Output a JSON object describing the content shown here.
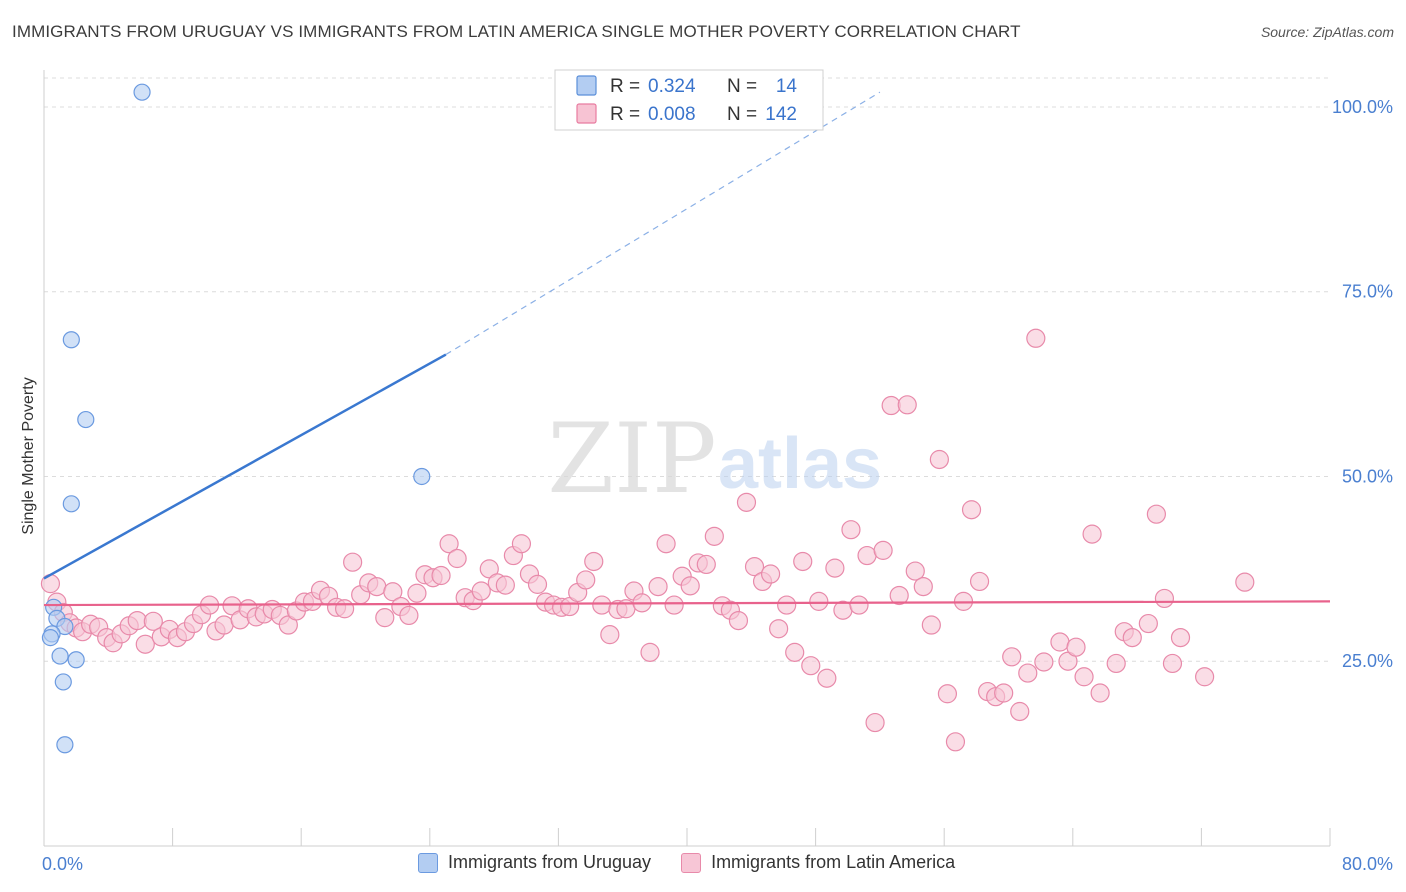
{
  "header": {
    "title": "IMMIGRANTS FROM URUGUAY VS IMMIGRANTS FROM LATIN AMERICA SINGLE MOTHER POVERTY CORRELATION CHART",
    "source": "Source: ZipAtlas.com"
  },
  "watermark": {
    "zip": "ZIP",
    "atlas": "atlas"
  },
  "stats_box": {
    "rows": [
      {
        "r_label": "R =",
        "r_value": "0.324",
        "n_label": "N =",
        "n_value": "14",
        "color": "#5b8fd9",
        "fill": "#b3cdf2"
      },
      {
        "r_label": "R =",
        "r_value": "0.008",
        "n_label": "N =",
        "n_value": "142",
        "color": "#e87ca0",
        "fill": "#f7c3d3"
      }
    ]
  },
  "legend": {
    "items": [
      {
        "label": "Immigrants from Uruguay",
        "fill": "#b3cdf2",
        "stroke": "#6b9ae0"
      },
      {
        "label": "Immigrants from Latin America",
        "fill": "#f7c6d6",
        "stroke": "#e88aaa"
      }
    ]
  },
  "chart_data": {
    "type": "scatter",
    "title": "IMMIGRANTS FROM URUGUAY VS IMMIGRANTS FROM LATIN AMERICA SINGLE MOTHER POVERTY CORRELATION CHART",
    "ylabel": "Single Mother Poverty",
    "xlabel": "",
    "xlim": [
      0,
      80
    ],
    "ylim": [
      0,
      105
    ],
    "x_tick_labels": [
      {
        "value": 0,
        "label": "0.0%"
      },
      {
        "value": 80,
        "label": "80.0%"
      }
    ],
    "y_tick_labels": [
      {
        "value": 25,
        "label": "25.0%"
      },
      {
        "value": 50,
        "label": "50.0%"
      },
      {
        "value": 75,
        "label": "75.0%"
      },
      {
        "value": 100,
        "label": "100.0%"
      }
    ],
    "grid": true,
    "series": [
      {
        "name": "Immigrants from Uruguay",
        "color": "#5b8fd9",
        "fill": "#b3cdf2",
        "stroke": "#6b9ae0",
        "r": 0.324,
        "n": 14,
        "trend": {
          "x0": 0,
          "y0": 36.2,
          "x1": 25,
          "y1": 66.5,
          "dashed_to_x": 52,
          "dashed_to_y": 102
        },
        "points": [
          [
            6.1,
            102.0
          ],
          [
            1.7,
            68.5
          ],
          [
            2.6,
            57.7
          ],
          [
            1.7,
            46.3
          ],
          [
            23.5,
            50.0
          ],
          [
            0.6,
            32.3
          ],
          [
            0.8,
            30.8
          ],
          [
            1.3,
            29.7
          ],
          [
            0.5,
            28.7
          ],
          [
            0.4,
            28.2
          ],
          [
            1.0,
            25.7
          ],
          [
            2.0,
            25.2
          ],
          [
            1.2,
            22.2
          ],
          [
            1.3,
            13.7
          ]
        ]
      },
      {
        "name": "Immigrants from Latin America",
        "color": "#e8628c",
        "fill": "#f7c6d6",
        "stroke": "#e88aaa",
        "r": 0.008,
        "n": 142,
        "trend": {
          "x0": 0,
          "y0": 32.6,
          "x1": 80,
          "y1": 33.1
        },
        "points": [
          [
            0.4,
            35.5
          ],
          [
            0.8,
            33.0
          ],
          [
            1.2,
            31.6
          ],
          [
            1.6,
            30.2
          ],
          [
            2.0,
            29.5
          ],
          [
            2.4,
            29.0
          ],
          [
            2.9,
            30.0
          ],
          [
            3.4,
            29.6
          ],
          [
            3.9,
            28.2
          ],
          [
            4.3,
            27.5
          ],
          [
            4.8,
            28.7
          ],
          [
            5.3,
            29.8
          ],
          [
            5.8,
            30.5
          ],
          [
            6.3,
            27.3
          ],
          [
            6.8,
            30.4
          ],
          [
            7.3,
            28.3
          ],
          [
            7.8,
            29.3
          ],
          [
            8.3,
            28.2
          ],
          [
            8.8,
            29.0
          ],
          [
            9.3,
            30.1
          ],
          [
            9.8,
            31.3
          ],
          [
            10.3,
            32.6
          ],
          [
            10.7,
            29.1
          ],
          [
            11.2,
            29.9
          ],
          [
            11.7,
            32.5
          ],
          [
            12.2,
            30.6
          ],
          [
            12.7,
            32.1
          ],
          [
            13.2,
            31.0
          ],
          [
            13.7,
            31.4
          ],
          [
            14.2,
            32.0
          ],
          [
            14.7,
            31.2
          ],
          [
            15.2,
            29.9
          ],
          [
            15.7,
            31.8
          ],
          [
            16.2,
            33.0
          ],
          [
            16.7,
            33.1
          ],
          [
            17.2,
            34.6
          ],
          [
            17.7,
            33.8
          ],
          [
            18.2,
            32.3
          ],
          [
            18.7,
            32.1
          ],
          [
            19.2,
            38.4
          ],
          [
            19.7,
            34.0
          ],
          [
            20.2,
            35.6
          ],
          [
            20.7,
            35.1
          ],
          [
            21.2,
            30.9
          ],
          [
            21.7,
            34.4
          ],
          [
            22.2,
            32.4
          ],
          [
            22.7,
            31.2
          ],
          [
            23.2,
            34.2
          ],
          [
            23.7,
            36.7
          ],
          [
            24.2,
            36.3
          ],
          [
            24.7,
            36.6
          ],
          [
            25.2,
            40.9
          ],
          [
            25.7,
            38.9
          ],
          [
            26.2,
            33.6
          ],
          [
            26.7,
            33.2
          ],
          [
            27.2,
            34.5
          ],
          [
            27.7,
            37.5
          ],
          [
            28.2,
            35.6
          ],
          [
            28.7,
            35.3
          ],
          [
            29.2,
            39.3
          ],
          [
            29.7,
            40.9
          ],
          [
            30.2,
            36.8
          ],
          [
            30.7,
            35.4
          ],
          [
            31.2,
            33.0
          ],
          [
            31.7,
            32.6
          ],
          [
            32.2,
            32.3
          ],
          [
            32.7,
            32.4
          ],
          [
            33.2,
            34.3
          ],
          [
            33.7,
            36.0
          ],
          [
            34.2,
            38.5
          ],
          [
            34.7,
            32.6
          ],
          [
            35.2,
            28.6
          ],
          [
            35.7,
            32.0
          ],
          [
            36.2,
            32.1
          ],
          [
            36.7,
            34.5
          ],
          [
            37.2,
            32.9
          ],
          [
            37.7,
            26.2
          ],
          [
            38.2,
            35.1
          ],
          [
            38.7,
            40.9
          ],
          [
            39.2,
            32.6
          ],
          [
            39.7,
            36.5
          ],
          [
            40.2,
            35.2
          ],
          [
            40.7,
            38.3
          ],
          [
            41.2,
            38.1
          ],
          [
            41.7,
            41.9
          ],
          [
            42.2,
            32.5
          ],
          [
            42.7,
            31.9
          ],
          [
            43.2,
            30.5
          ],
          [
            43.7,
            46.5
          ],
          [
            44.2,
            37.8
          ],
          [
            44.7,
            35.8
          ],
          [
            45.2,
            36.8
          ],
          [
            45.7,
            29.4
          ],
          [
            46.2,
            32.6
          ],
          [
            46.7,
            26.2
          ],
          [
            47.2,
            38.5
          ],
          [
            47.7,
            24.4
          ],
          [
            48.2,
            33.1
          ],
          [
            48.7,
            22.7
          ],
          [
            49.2,
            37.6
          ],
          [
            49.7,
            31.9
          ],
          [
            50.2,
            42.8
          ],
          [
            50.7,
            32.6
          ],
          [
            51.2,
            39.3
          ],
          [
            51.7,
            16.7
          ],
          [
            52.2,
            40.0
          ],
          [
            52.7,
            59.6
          ],
          [
            53.2,
            33.9
          ],
          [
            53.7,
            59.7
          ],
          [
            54.2,
            37.2
          ],
          [
            54.7,
            35.1
          ],
          [
            55.2,
            29.9
          ],
          [
            55.7,
            52.3
          ],
          [
            56.2,
            20.6
          ],
          [
            56.7,
            14.1
          ],
          [
            57.2,
            33.1
          ],
          [
            57.7,
            45.5
          ],
          [
            58.2,
            35.8
          ],
          [
            58.7,
            20.9
          ],
          [
            59.2,
            20.2
          ],
          [
            59.7,
            20.7
          ],
          [
            60.2,
            25.6
          ],
          [
            60.7,
            18.2
          ],
          [
            61.2,
            23.4
          ],
          [
            61.7,
            68.7
          ],
          [
            62.2,
            24.9
          ],
          [
            63.2,
            27.6
          ],
          [
            63.7,
            25.0
          ],
          [
            64.2,
            26.9
          ],
          [
            64.7,
            22.9
          ],
          [
            65.2,
            42.2
          ],
          [
            65.7,
            20.7
          ],
          [
            66.7,
            24.7
          ],
          [
            67.2,
            29.0
          ],
          [
            67.7,
            28.2
          ],
          [
            68.7,
            30.1
          ],
          [
            69.2,
            44.9
          ],
          [
            69.7,
            33.5
          ],
          [
            70.2,
            24.7
          ],
          [
            70.7,
            28.2
          ],
          [
            72.2,
            22.9
          ],
          [
            74.7,
            35.7
          ]
        ]
      }
    ]
  }
}
